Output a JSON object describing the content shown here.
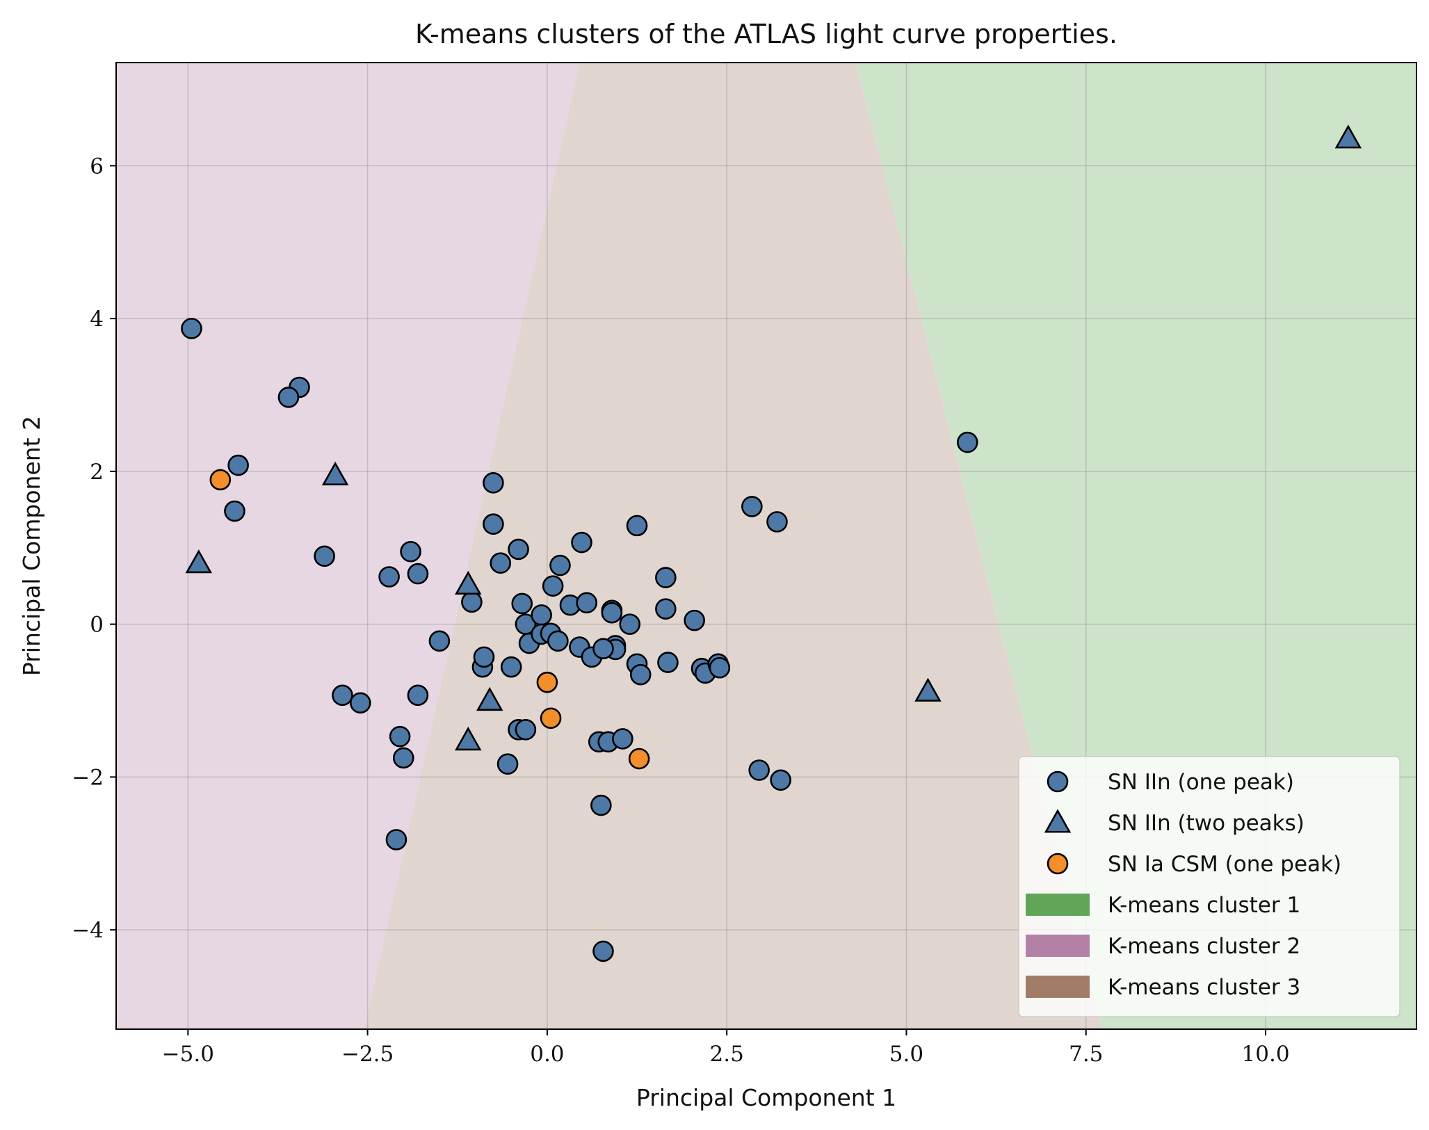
{
  "chart_data": {
    "type": "scatter",
    "title": "K-means clusters of the ATLAS light curve properties.",
    "xlabel": "Principal Component 1",
    "ylabel": "Principal Component 2",
    "xlim": [
      -6.0,
      12.1
    ],
    "ylim": [
      -5.3,
      7.35
    ],
    "xticks": [
      -5.0,
      -2.5,
      0.0,
      2.5,
      5.0,
      7.5,
      10.0
    ],
    "xtick_labels": [
      "−5.0",
      "−2.5",
      "0.0",
      "2.5",
      "5.0",
      "7.5",
      "10.0"
    ],
    "yticks": [
      -4,
      -2,
      0,
      2,
      4,
      6
    ],
    "ytick_labels": [
      "−4",
      "−2",
      "0",
      "2",
      "4",
      "6"
    ],
    "grid": true,
    "legend_position": "lower-right",
    "regions": [
      {
        "name": "K-means cluster 1",
        "color": "#59a14f"
      },
      {
        "name": "K-means cluster 2",
        "color": "#b07aa1"
      },
      {
        "name": "K-means cluster 3",
        "color": "#9c755f"
      }
    ],
    "series": [
      {
        "name": "SN IIn (one peak)",
        "marker": "circle",
        "color": "#4e79a7",
        "points": [
          [
            -4.95,
            3.87
          ],
          [
            -3.45,
            3.1
          ],
          [
            -3.6,
            2.97
          ],
          [
            -4.3,
            2.08
          ],
          [
            -4.35,
            1.48
          ],
          [
            -3.1,
            0.89
          ],
          [
            -2.2,
            0.62
          ],
          [
            -1.9,
            0.95
          ],
          [
            -1.8,
            0.66
          ],
          [
            -1.5,
            -0.22
          ],
          [
            -2.85,
            -0.93
          ],
          [
            -2.6,
            -1.03
          ],
          [
            -1.8,
            -0.93
          ],
          [
            -2.05,
            -1.47
          ],
          [
            -2.0,
            -1.75
          ],
          [
            -2.1,
            -2.82
          ],
          [
            -0.75,
            1.85
          ],
          [
            -0.75,
            1.31
          ],
          [
            -0.65,
            0.8
          ],
          [
            -0.4,
            0.98
          ],
          [
            -1.05,
            0.29
          ],
          [
            -0.9,
            -0.56
          ],
          [
            -0.88,
            -0.43
          ],
          [
            -0.5,
            -0.56
          ],
          [
            -0.35,
            0.27
          ],
          [
            -0.3,
            0.0
          ],
          [
            -0.25,
            -0.25
          ],
          [
            -0.08,
            0.12
          ],
          [
            -0.08,
            -0.13
          ],
          [
            0.05,
            -0.12
          ],
          [
            0.08,
            0.5
          ],
          [
            0.18,
            0.77
          ],
          [
            0.15,
            -0.22
          ],
          [
            0.32,
            0.25
          ],
          [
            0.48,
            1.07
          ],
          [
            0.45,
            -0.3
          ],
          [
            0.55,
            0.28
          ],
          [
            0.62,
            -0.43
          ],
          [
            0.9,
            0.18
          ],
          [
            0.9,
            0.15
          ],
          [
            0.95,
            -0.28
          ],
          [
            0.95,
            -0.33
          ],
          [
            0.78,
            -0.32
          ],
          [
            1.15,
            0.0
          ],
          [
            1.25,
            1.29
          ],
          [
            1.25,
            -0.52
          ],
          [
            1.3,
            -0.66
          ],
          [
            1.65,
            0.61
          ],
          [
            1.65,
            0.2
          ],
          [
            1.68,
            -0.5
          ],
          [
            2.05,
            0.05
          ],
          [
            2.15,
            -0.58
          ],
          [
            2.2,
            -0.64
          ],
          [
            2.38,
            -0.52
          ],
          [
            2.4,
            -0.57
          ],
          [
            -0.4,
            -1.38
          ],
          [
            -0.3,
            -1.38
          ],
          [
            -0.55,
            -1.83
          ],
          [
            0.72,
            -1.54
          ],
          [
            0.85,
            -1.54
          ],
          [
            1.05,
            -1.5
          ],
          [
            0.75,
            -2.37
          ],
          [
            0.78,
            -4.28
          ],
          [
            2.85,
            1.54
          ],
          [
            3.2,
            1.34
          ],
          [
            2.95,
            -1.91
          ],
          [
            3.25,
            -2.04
          ],
          [
            5.85,
            2.38
          ]
        ]
      },
      {
        "name": "SN IIn (two peaks)",
        "marker": "triangle",
        "color": "#4e79a7",
        "points": [
          [
            -4.85,
            0.8
          ],
          [
            -2.95,
            1.95
          ],
          [
            -1.1,
            0.52
          ],
          [
            -0.8,
            -1.0
          ],
          [
            -1.1,
            -1.52
          ],
          [
            5.3,
            -0.88
          ],
          [
            11.15,
            6.36
          ]
        ]
      },
      {
        "name": "SN Ia CSM (one peak)",
        "marker": "circle",
        "color": "#f28e2b",
        "points": [
          [
            -4.55,
            1.89
          ],
          [
            0.0,
            -0.76
          ],
          [
            0.05,
            -1.23
          ],
          [
            1.28,
            -1.76
          ]
        ]
      }
    ]
  }
}
